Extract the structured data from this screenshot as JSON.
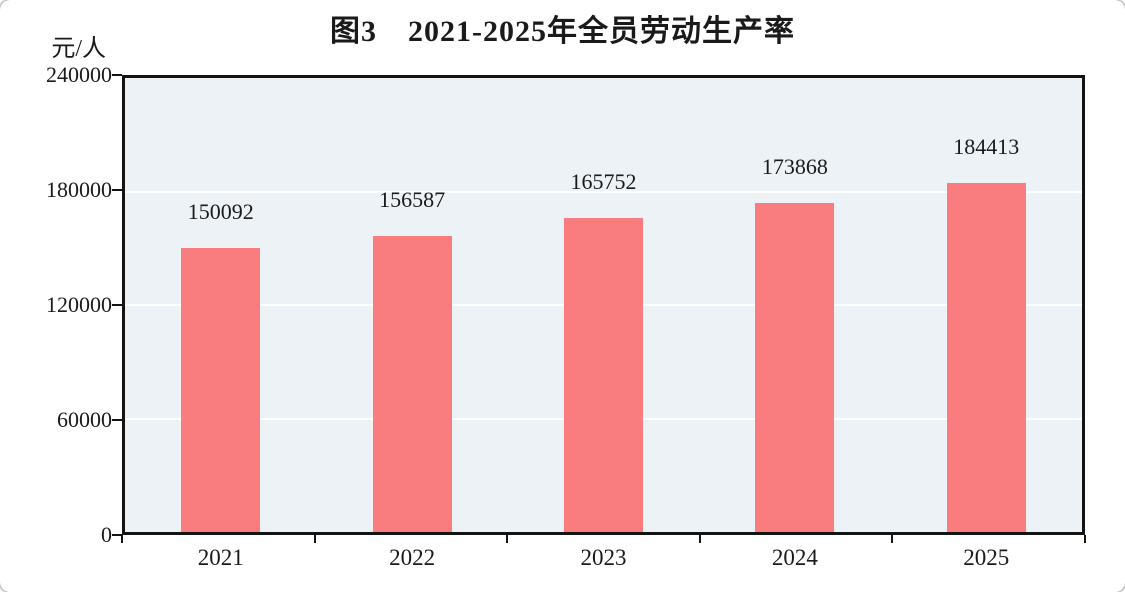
{
  "chart_data": {
    "type": "bar",
    "title": "图3　2021-2025年全员劳动生产率",
    "ylabel": "元/人",
    "xlabel": "",
    "categories": [
      "2021",
      "2022",
      "2023",
      "2024",
      "2025"
    ],
    "values": [
      150092,
      156587,
      165752,
      173868,
      184413
    ],
    "ylim": [
      0,
      240000
    ],
    "yticks": [
      0,
      60000,
      120000,
      180000,
      240000
    ],
    "grid": "horizontal white gridlines at 60000/120000/180000",
    "legend": "none",
    "colors": {
      "bar": "#F97D7E",
      "plot_bg": "#ECF2F6",
      "grid": "#FFFFFF",
      "axis": "#141414",
      "text": "#1A1A1A"
    }
  }
}
